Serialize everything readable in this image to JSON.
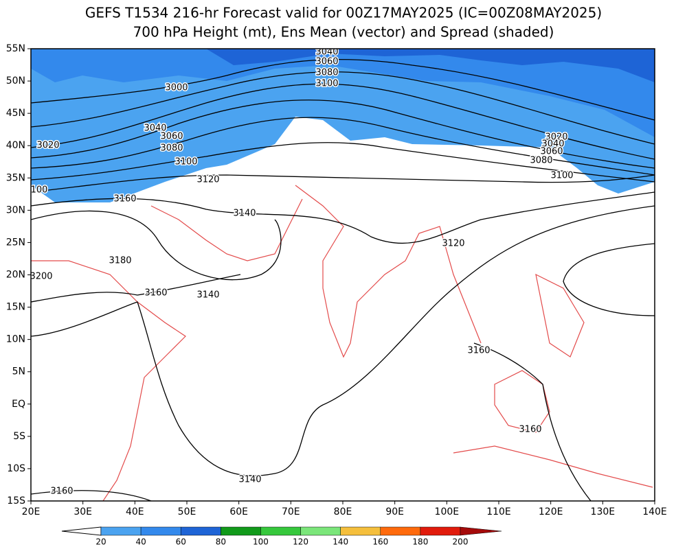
{
  "header": {
    "title": "GEFS T1534 216-hr Forecast valid for 00Z17MAY2025 (IC=00Z08MAY2025)",
    "subtitle": "700 hPa Height (mt), Ens Mean (vector) and Spread (shaded)"
  },
  "axes": {
    "lat_labels": [
      "55N",
      "50N",
      "45N",
      "40N",
      "35N",
      "30N",
      "25N",
      "20N",
      "15N",
      "10N",
      "5N",
      "EQ",
      "5S",
      "10S",
      "15S"
    ],
    "lon_labels": [
      "20E",
      "30E",
      "40E",
      "50E",
      "60E",
      "70E",
      "80E",
      "90E",
      "100E",
      "110E",
      "120E",
      "130E",
      "140E"
    ]
  },
  "contour_labels": [
    "3040",
    "3060",
    "3080",
    "3100",
    "3000",
    "3040",
    "3060",
    "3080",
    "3020",
    "3100",
    "3120",
    "3020",
    "3040",
    "3060",
    "3080",
    "3100",
    "100",
    "3160",
    "3140",
    "3120",
    "3180",
    "3200",
    "3160",
    "3140",
    "3160",
    "3160",
    "3140",
    "3160"
  ],
  "colorbar": {
    "labels": [
      "20",
      "40",
      "60",
      "80",
      "100",
      "120",
      "140",
      "160",
      "180",
      "200"
    ],
    "colors": [
      "#4ba3f0",
      "#3389ec",
      "#1e64d6",
      "#119a1a",
      "#36c83c",
      "#7be67a",
      "#f5bf3c",
      "#ff6a0c",
      "#e11b0c",
      "#a50a0a"
    ]
  }
}
